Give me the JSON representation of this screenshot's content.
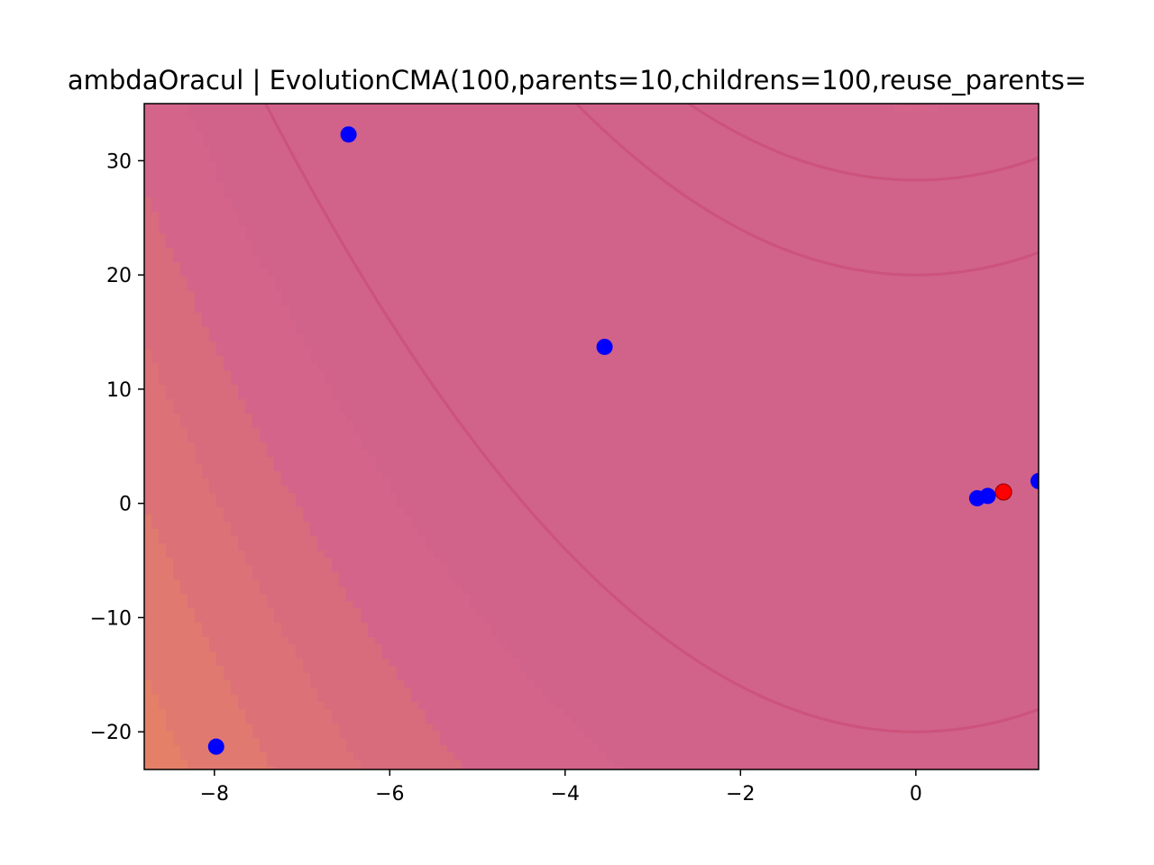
{
  "chart_data": {
    "type": "scatter",
    "title": "ambdaOracul | EvolutionCMA(100,parents=10,childrens=100,reuse_parents=",
    "xlabel": "",
    "ylabel": "",
    "xlim": [
      -8.8,
      1.4
    ],
    "ylim": [
      -23.3,
      35.0
    ],
    "x_ticks": [
      {
        "value": -8,
        "label": "−8"
      },
      {
        "value": -6,
        "label": "−6"
      },
      {
        "value": -4,
        "label": "−4"
      },
      {
        "value": -2,
        "label": "−2"
      },
      {
        "value": 0,
        "label": "0"
      }
    ],
    "y_ticks": [
      {
        "value": -20,
        "label": "−20"
      },
      {
        "value": -10,
        "label": "−10"
      },
      {
        "value": 0,
        "label": "0"
      },
      {
        "value": 10,
        "label": "10"
      },
      {
        "value": 20,
        "label": "20"
      },
      {
        "value": 30,
        "label": "30"
      }
    ],
    "grid": false,
    "background": {
      "kind": "filled-contour",
      "function": "rosenbrock",
      "colormap": "plasma",
      "colors": [
        "#d1628a",
        "#d86b7c",
        "#e0796f",
        "#ea8a60",
        "#f5a04c",
        "#fbc23a",
        "#f3e737"
      ]
    },
    "series": [
      {
        "color": "#0000ff",
        "points": [
          {
            "x": -6.47,
            "y": 32.3
          },
          {
            "x": -3.55,
            "y": 13.7
          },
          {
            "x": -7.98,
            "y": -21.3
          },
          {
            "x": 0.7,
            "y": 0.45
          },
          {
            "x": 0.82,
            "y": 0.65
          },
          {
            "x": 1.4,
            "y": 1.95
          }
        ]
      },
      {
        "color": "#ff0000",
        "points": [
          {
            "x": 1.0,
            "y": 1.0
          }
        ]
      }
    ]
  }
}
